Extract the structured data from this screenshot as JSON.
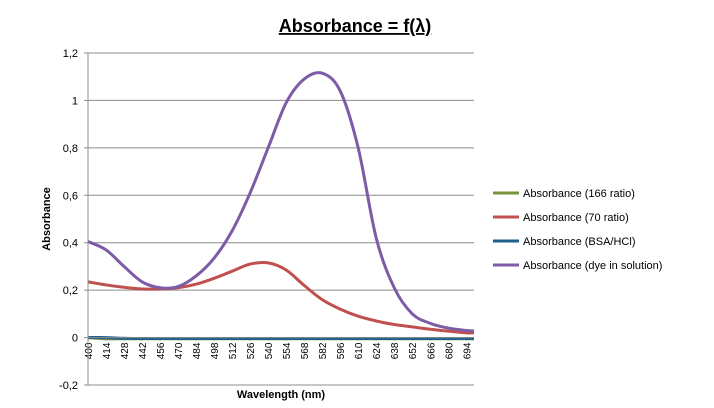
{
  "chart_data": {
    "type": "line",
    "title": "Absorbance = f(λ)",
    "xlabel": "Wavelength (nm)",
    "ylabel": "Absorbance",
    "ylim": [
      -0.2,
      1.2
    ],
    "y_ticks": [
      "-0,2",
      "0",
      "0,2",
      "0,4",
      "0,6",
      "0,8",
      "1",
      "1,2"
    ],
    "y_tick_values": [
      -0.2,
      0,
      0.2,
      0.4,
      0.6,
      0.8,
      1.0,
      1.2
    ],
    "xlim": [
      400,
      700
    ],
    "x_ticks": [
      400,
      414,
      428,
      442,
      456,
      470,
      484,
      498,
      512,
      526,
      540,
      554,
      568,
      582,
      596,
      610,
      624,
      638,
      652,
      666,
      680,
      694
    ],
    "grid": true,
    "legend_position": "right",
    "x": [
      400,
      414,
      428,
      442,
      456,
      470,
      484,
      498,
      512,
      526,
      540,
      554,
      568,
      582,
      596,
      610,
      624,
      638,
      652,
      666,
      680,
      694,
      700
    ],
    "series": [
      {
        "name": "Absorbance (166 ratio)",
        "color": "#77933c",
        "values": [
          0.0,
          -0.005,
          -0.005,
          -0.005,
          -0.005,
          -0.005,
          -0.005,
          -0.005,
          -0.005,
          -0.005,
          -0.005,
          -0.005,
          -0.005,
          -0.005,
          -0.005,
          -0.005,
          -0.005,
          -0.005,
          -0.005,
          -0.005,
          -0.005,
          -0.005,
          -0.005
        ]
      },
      {
        "name": "Absorbance (70 ratio)",
        "color": "#c0504d",
        "values": [
          0.235,
          0.222,
          0.212,
          0.205,
          0.205,
          0.21,
          0.225,
          0.25,
          0.28,
          0.31,
          0.315,
          0.285,
          0.22,
          0.16,
          0.12,
          0.09,
          0.07,
          0.055,
          0.045,
          0.035,
          0.027,
          0.02,
          0.02
        ]
      },
      {
        "name": "Absorbance (BSA/HCl)",
        "color": "#1f5f8b",
        "values": [
          0.0,
          0.0,
          -0.003,
          -0.004,
          -0.004,
          -0.004,
          -0.004,
          -0.004,
          -0.004,
          -0.004,
          -0.004,
          -0.004,
          -0.004,
          -0.004,
          -0.004,
          -0.004,
          -0.004,
          -0.004,
          -0.004,
          -0.004,
          -0.004,
          -0.004,
          -0.004
        ]
      },
      {
        "name": "Absorbance (dye in solution)",
        "color": "#7d5ba6",
        "values": [
          0.405,
          0.37,
          0.3,
          0.235,
          0.21,
          0.215,
          0.26,
          0.335,
          0.45,
          0.61,
          0.8,
          0.99,
          1.09,
          1.115,
          1.04,
          0.8,
          0.42,
          0.21,
          0.1,
          0.06,
          0.04,
          0.03,
          0.028
        ]
      }
    ]
  }
}
